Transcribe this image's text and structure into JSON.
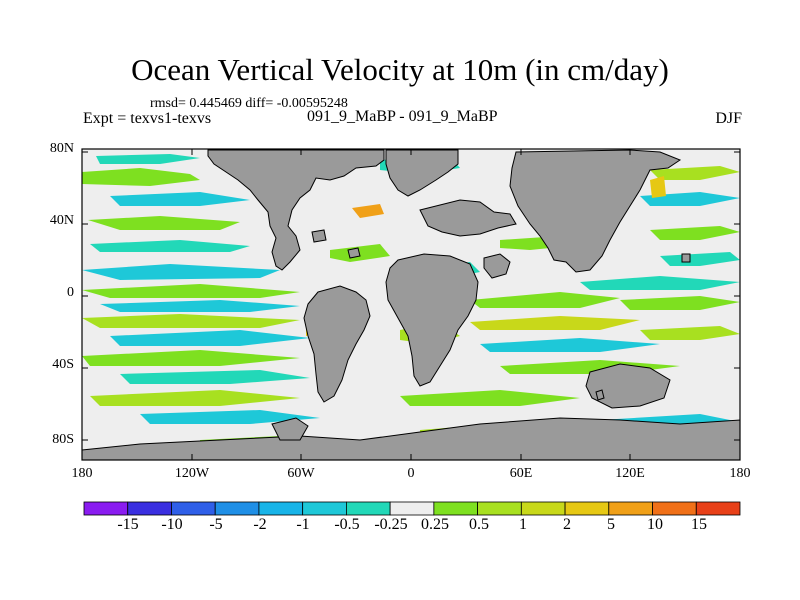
{
  "title": "Ocean Vertical Velocity at 10m (in cm/day)",
  "stats": "rmsd= 0.445469 diff= -0.00595248",
  "expt": "Expt = texvs1-texvs",
  "cases": "091_9_MaBP - 091_9_MaBP",
  "season": "DJF",
  "lat_labels": [
    "80N",
    "40N",
    "0",
    "40S",
    "80S"
  ],
  "lon_labels": [
    "180",
    "120W",
    "60W",
    "0",
    "60E",
    "120E",
    "180"
  ],
  "colorbar": {
    "labels": [
      "-15",
      "-10",
      "-5",
      "-2",
      "-1",
      "-0.5",
      "-0.25",
      "0.25",
      "0.5",
      "1",
      "2",
      "5",
      "10",
      "15"
    ],
    "colors": [
      "#8a1cf0",
      "#3a2fe0",
      "#2f5fe8",
      "#1f8fe6",
      "#18b4e8",
      "#1ec8d8",
      "#22d8b8",
      "#eeeeee",
      "#7ee020",
      "#a8e020",
      "#c8d81a",
      "#e6c814",
      "#f0a018",
      "#f07018",
      "#e84018"
    ]
  },
  "map": {
    "land_color": "#9a9a9a",
    "ocean_color": "#eeeeee"
  }
}
